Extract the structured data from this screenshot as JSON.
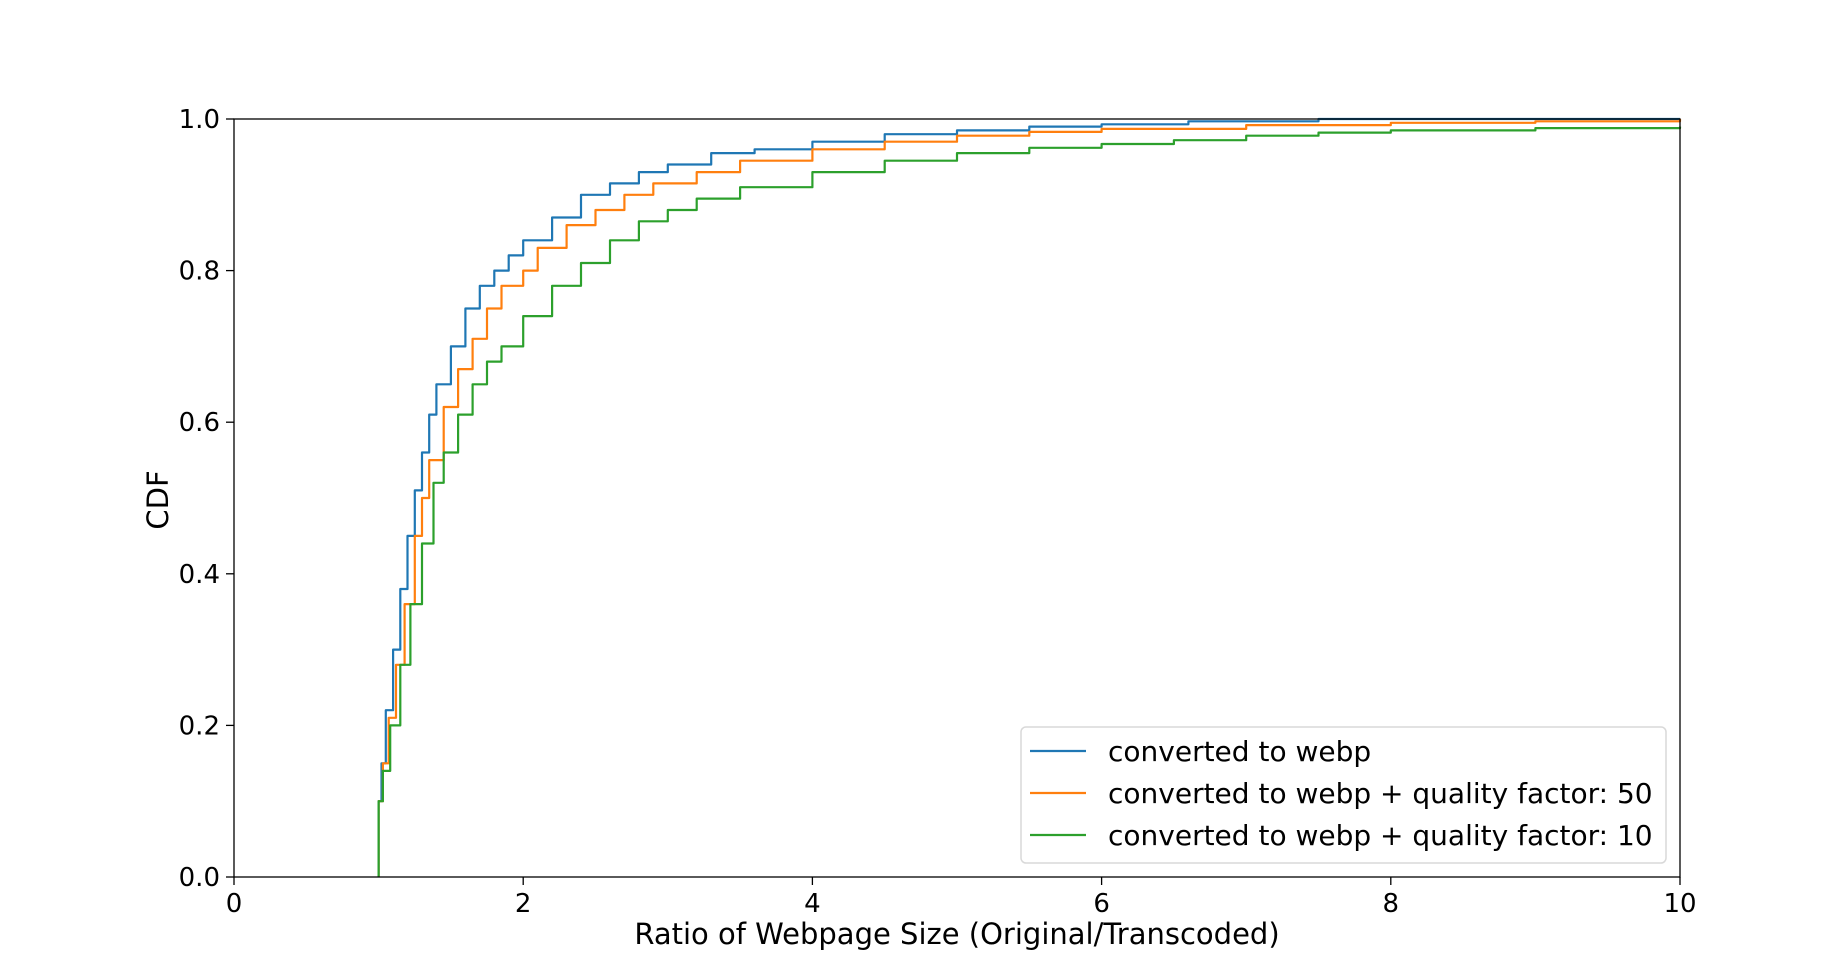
{
  "chart_data": {
    "type": "line",
    "title": "",
    "xlabel": "Ratio of Webpage Size (Original/Transcoded)",
    "ylabel": "CDF",
    "xlim": [
      0,
      10
    ],
    "ylim": [
      0.0,
      1.0
    ],
    "x_ticks": [
      "0",
      "2",
      "4",
      "6",
      "8",
      "10"
    ],
    "y_ticks": [
      "0.0",
      "0.2",
      "0.4",
      "0.6",
      "0.8",
      "1.0"
    ],
    "grid": false,
    "legend_position": "lower-right",
    "series": [
      {
        "name": "converted to webp",
        "color": "#1f77b4",
        "points": [
          [
            1.0,
            0.0
          ],
          [
            1.0,
            0.1
          ],
          [
            1.02,
            0.15
          ],
          [
            1.05,
            0.22
          ],
          [
            1.1,
            0.3
          ],
          [
            1.15,
            0.38
          ],
          [
            1.2,
            0.45
          ],
          [
            1.25,
            0.51
          ],
          [
            1.3,
            0.56
          ],
          [
            1.35,
            0.61
          ],
          [
            1.4,
            0.65
          ],
          [
            1.5,
            0.7
          ],
          [
            1.6,
            0.75
          ],
          [
            1.7,
            0.78
          ],
          [
            1.8,
            0.8
          ],
          [
            1.9,
            0.82
          ],
          [
            2.0,
            0.84
          ],
          [
            2.2,
            0.87
          ],
          [
            2.4,
            0.9
          ],
          [
            2.6,
            0.915
          ],
          [
            2.8,
            0.93
          ],
          [
            3.0,
            0.94
          ],
          [
            3.3,
            0.955
          ],
          [
            3.6,
            0.96
          ],
          [
            4.0,
            0.97
          ],
          [
            4.5,
            0.98
          ],
          [
            5.0,
            0.985
          ],
          [
            5.5,
            0.99
          ],
          [
            6.0,
            0.993
          ],
          [
            6.6,
            0.997
          ],
          [
            7.5,
            1.0
          ],
          [
            10.0,
            1.0
          ]
        ]
      },
      {
        "name": "converted to webp + quality factor: 50",
        "color": "#ff7f0e",
        "points": [
          [
            1.0,
            0.0
          ],
          [
            1.0,
            0.1
          ],
          [
            1.03,
            0.15
          ],
          [
            1.07,
            0.21
          ],
          [
            1.12,
            0.28
          ],
          [
            1.18,
            0.36
          ],
          [
            1.25,
            0.45
          ],
          [
            1.3,
            0.5
          ],
          [
            1.35,
            0.55
          ],
          [
            1.45,
            0.62
          ],
          [
            1.55,
            0.67
          ],
          [
            1.65,
            0.71
          ],
          [
            1.75,
            0.75
          ],
          [
            1.85,
            0.78
          ],
          [
            2.0,
            0.8
          ],
          [
            2.1,
            0.83
          ],
          [
            2.3,
            0.86
          ],
          [
            2.5,
            0.88
          ],
          [
            2.7,
            0.9
          ],
          [
            2.9,
            0.915
          ],
          [
            3.2,
            0.93
          ],
          [
            3.5,
            0.945
          ],
          [
            4.0,
            0.96
          ],
          [
            4.5,
            0.97
          ],
          [
            5.0,
            0.978
          ],
          [
            5.5,
            0.983
          ],
          [
            6.0,
            0.987
          ],
          [
            7.0,
            0.992
          ],
          [
            8.0,
            0.995
          ],
          [
            9.0,
            0.997
          ],
          [
            10.0,
            1.0
          ]
        ]
      },
      {
        "name": "converted to webp + quality factor: 10",
        "color": "#2ca02c",
        "points": [
          [
            1.0,
            0.0
          ],
          [
            1.0,
            0.1
          ],
          [
            1.03,
            0.14
          ],
          [
            1.08,
            0.2
          ],
          [
            1.15,
            0.28
          ],
          [
            1.22,
            0.36
          ],
          [
            1.3,
            0.44
          ],
          [
            1.38,
            0.52
          ],
          [
            1.45,
            0.56
          ],
          [
            1.55,
            0.61
          ],
          [
            1.65,
            0.65
          ],
          [
            1.75,
            0.68
          ],
          [
            1.85,
            0.7
          ],
          [
            2.0,
            0.74
          ],
          [
            2.2,
            0.78
          ],
          [
            2.4,
            0.81
          ],
          [
            2.6,
            0.84
          ],
          [
            2.8,
            0.865
          ],
          [
            3.0,
            0.88
          ],
          [
            3.2,
            0.895
          ],
          [
            3.5,
            0.91
          ],
          [
            4.0,
            0.93
          ],
          [
            4.5,
            0.945
          ],
          [
            5.0,
            0.955
          ],
          [
            5.5,
            0.962
          ],
          [
            6.0,
            0.967
          ],
          [
            6.5,
            0.972
          ],
          [
            7.0,
            0.978
          ],
          [
            7.5,
            0.982
          ],
          [
            8.0,
            0.985
          ],
          [
            9.0,
            0.988
          ],
          [
            10.0,
            0.99
          ]
        ]
      }
    ]
  }
}
